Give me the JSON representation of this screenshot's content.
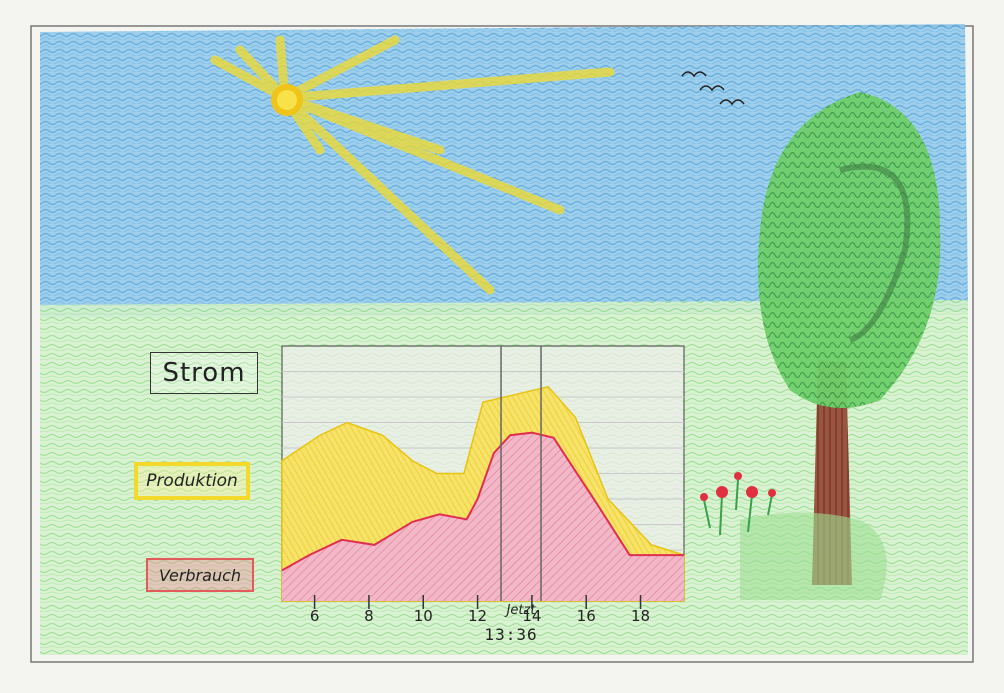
{
  "labels": {
    "title": "Strom",
    "production": "Produktion",
    "consumption": "Verbrauch",
    "now": "Jetzt",
    "current_time": "13:36"
  },
  "colors": {
    "sky": "#5fb0e0",
    "grass": "#a8e6a0",
    "sun": "#f5e030",
    "production": "#f0d020",
    "consumption": "#e892ae",
    "consumption_line": "#e03050",
    "tree_leaves": "#5cbf5c",
    "tree_trunk": "#8b4a36",
    "flower": "#e03040"
  },
  "icons": [
    "sun-icon",
    "birds-icon",
    "tree-icon",
    "flowers-icon"
  ],
  "chart_data": {
    "type": "area",
    "x_ticks": [
      "6",
      "8",
      "10",
      "12",
      "14",
      "16",
      "18"
    ],
    "now": 13.6,
    "series": [
      {
        "name": "Produktion",
        "x": [
          4.8,
          6.2,
          7.2,
          8.5,
          9.6,
          10.5,
          11.5,
          12.2,
          13.4,
          14.6,
          15.6,
          16.8,
          18.4,
          19.6
        ],
        "values": [
          0.55,
          0.65,
          0.7,
          0.65,
          0.55,
          0.5,
          0.5,
          0.78,
          0.81,
          0.84,
          0.72,
          0.4,
          0.22,
          0.18
        ]
      },
      {
        "name": "Verbrauch",
        "x": [
          4.8,
          5.8,
          7.0,
          8.2,
          9.6,
          10.6,
          11.6,
          12.0,
          12.6,
          13.2,
          14.0,
          14.8,
          16.4,
          17.6,
          19.6
        ],
        "values": [
          0.12,
          0.18,
          0.24,
          0.22,
          0.31,
          0.34,
          0.32,
          0.4,
          0.58,
          0.65,
          0.66,
          0.64,
          0.38,
          0.18,
          0.18
        ]
      }
    ]
  }
}
